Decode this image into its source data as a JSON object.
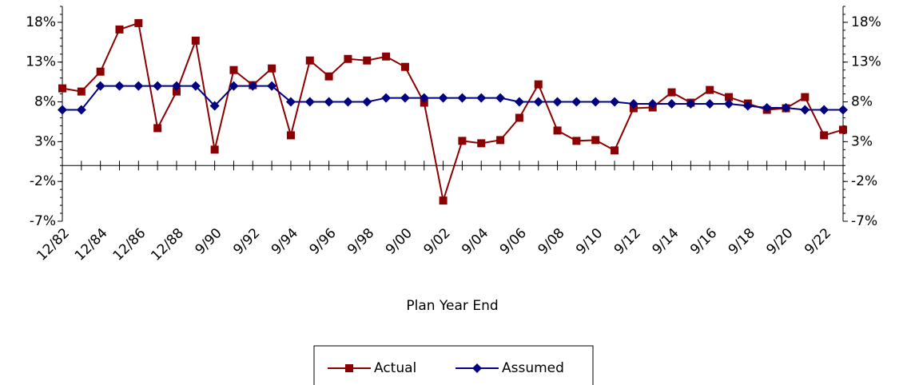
{
  "chart_data": {
    "type": "line",
    "x_label": "Plan Year End",
    "categories": [
      "12/82",
      null,
      "12/84",
      null,
      "12/86",
      null,
      "12/88",
      null,
      "9/90",
      null,
      "9/92",
      null,
      "9/94",
      null,
      "9/96",
      null,
      "9/98",
      null,
      "9/00",
      null,
      "9/02",
      null,
      "9/04",
      null,
      "9/06",
      null,
      "9/08",
      null,
      "9/10",
      null,
      "9/12",
      null,
      "9/14",
      null,
      "9/16",
      null,
      "9/18",
      null,
      "9/20",
      null,
      "9/22",
      null
    ],
    "series": [
      {
        "name": "Actual",
        "color": "#8b0000",
        "marker": "square",
        "values": [
          9.7,
          9.3,
          11.8,
          17.1,
          17.9,
          4.7,
          9.3,
          15.7,
          2.0,
          12.0,
          10.1,
          12.2,
          3.8,
          13.2,
          11.2,
          13.4,
          13.2,
          13.7,
          12.4,
          7.9,
          -4.4,
          3.1,
          2.8,
          3.2,
          6.0,
          10.2,
          4.4,
          3.1,
          3.2,
          1.9,
          7.2,
          7.3,
          9.2,
          7.9,
          9.5,
          8.6,
          7.8,
          7.0,
          7.2,
          8.6,
          3.8,
          4.5
        ]
      },
      {
        "name": "Assumed",
        "color": "#000080",
        "marker": "diamond",
        "values": [
          7.0,
          7.0,
          10.0,
          10.0,
          10.0,
          10.0,
          10.0,
          10.0,
          7.5,
          10.0,
          10.0,
          10.0,
          8.0,
          8.0,
          8.0,
          8.0,
          8.0,
          8.5,
          8.5,
          8.5,
          8.5,
          8.5,
          8.5,
          8.5,
          8.0,
          8.0,
          8.0,
          8.0,
          8.0,
          8.0,
          7.75,
          7.75,
          7.75,
          7.75,
          7.75,
          7.75,
          7.5,
          7.25,
          7.25,
          7.0,
          7.0,
          7.0
        ]
      }
    ],
    "ylim": [
      -7,
      20
    ],
    "yticks": [
      {
        "value": -7,
        "label": "-7%"
      },
      {
        "value": -2,
        "label": "-2%"
      },
      {
        "value": 3,
        "label": "3%"
      },
      {
        "value": 8,
        "label": "8%"
      },
      {
        "value": 13,
        "label": "13%"
      },
      {
        "value": 18,
        "label": "18%"
      }
    ],
    "right_axis_mirror": true,
    "legend": "bottom"
  }
}
